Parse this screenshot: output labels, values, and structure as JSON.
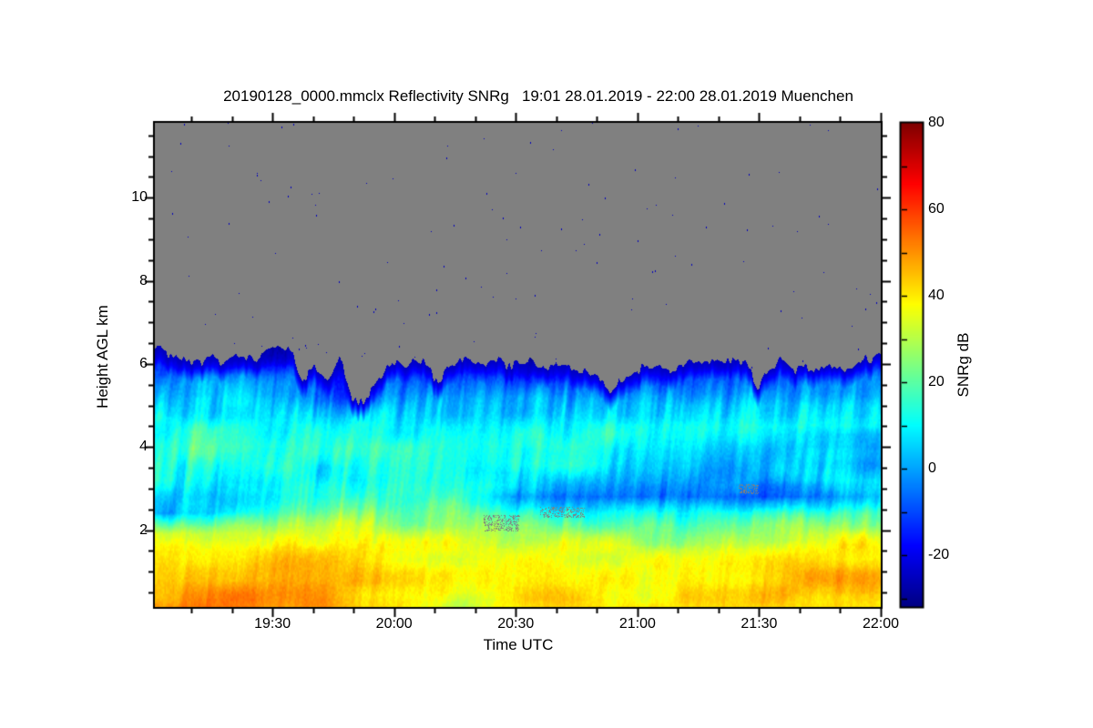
{
  "chart": {
    "title": "20190128_0000.mmclx Reflectivity SNRg   19:01 28.01.2019 - 22:00 28.01.2019 Muenchen",
    "xlabel": "Time UTC",
    "ylabel": "Height AGL km",
    "colorbar_label": "SNRg dB"
  },
  "chart_data": {
    "type": "heatmap",
    "title": "20190128_0000.mmclx Reflectivity SNRg   19:01 28.01.2019 - 22:00 28.01.2019 Muenchen",
    "xlabel": "Time UTC",
    "ylabel": "Height AGL km",
    "colorbar_label": "SNRg dB",
    "x_start": "19:01",
    "x_end": "22:00",
    "duration_min": 179,
    "x_tick_labels": [
      "19:30",
      "20:00",
      "20:30",
      "21:00",
      "21:30",
      "22:00"
    ],
    "x_tick_minutes": [
      29,
      59,
      89,
      119,
      149,
      179
    ],
    "x_minor_step_min": 10,
    "y_range_km": [
      0.15,
      11.8
    ],
    "y_ticks_km": [
      2,
      4,
      6,
      8,
      10
    ],
    "y_minor_step_km": 0.5,
    "value_range_db": [
      -32,
      80
    ],
    "colorbar_ticks_db": [
      80,
      60,
      40,
      20,
      0,
      -20
    ],
    "no_data_color": "#808080",
    "speckle_color": "#0000BE",
    "colormap": {
      "name": "jet",
      "stops": [
        [
          0.0,
          "#000083"
        ],
        [
          0.125,
          "#0000FF"
        ],
        [
          0.375,
          "#00FFFF"
        ],
        [
          0.625,
          "#FFFF00"
        ],
        [
          0.875,
          "#FF0000"
        ],
        [
          1.0,
          "#800000"
        ]
      ]
    },
    "profile_times_min": [
      0,
      15,
      30,
      45,
      60,
      75,
      90,
      105,
      120,
      135,
      150,
      165,
      179
    ],
    "profile_heights_km": [
      0.15,
      0.5,
      1.0,
      1.5,
      1.9,
      2.4,
      2.8,
      3.2,
      3.6,
      4.0,
      4.5,
      5.0,
      5.5,
      6.0,
      6.3
    ],
    "snr_profiles_db": [
      [
        48,
        47,
        44,
        39,
        30,
        -4,
        2,
        12,
        14,
        15,
        12,
        6,
        -2,
        -16,
        -24
      ],
      [
        50,
        48,
        45,
        40,
        32,
        8,
        6,
        10,
        14,
        16,
        13,
        7,
        0,
        -14,
        -22
      ],
      [
        51,
        50,
        47,
        41,
        34,
        20,
        12,
        10,
        13,
        15,
        12,
        6,
        -2,
        -15,
        -23
      ],
      [
        47,
        46,
        44,
        40,
        33,
        22,
        14,
        10,
        12,
        13,
        8,
        -2,
        -12,
        -20,
        -25
      ],
      [
        44,
        42,
        40,
        37,
        32,
        24,
        16,
        12,
        12,
        13,
        9,
        2,
        -8,
        -18,
        -24
      ],
      [
        28,
        36,
        39,
        36,
        31,
        24,
        17,
        13,
        13,
        14,
        10,
        4,
        -6,
        -16,
        -23
      ],
      [
        42,
        41,
        39,
        35,
        28,
        14,
        -2,
        6,
        14,
        17,
        12,
        4,
        -6,
        -17,
        -24
      ],
      [
        43,
        42,
        40,
        36,
        27,
        12,
        -4,
        2,
        12,
        16,
        11,
        3,
        -8,
        -18,
        -24
      ],
      [
        41,
        40,
        38,
        33,
        24,
        10,
        -7,
        0,
        4,
        8,
        9,
        2,
        -10,
        -19,
        -25
      ],
      [
        42,
        41,
        39,
        34,
        25,
        11,
        -6,
        -2,
        3,
        7,
        10,
        4,
        -8,
        -17,
        -24
      ],
      [
        43,
        44,
        42,
        36,
        26,
        14,
        -8,
        0,
        2,
        6,
        12,
        6,
        -4,
        -15,
        -23
      ],
      [
        42,
        46,
        45,
        39,
        32,
        18,
        0,
        8,
        4,
        2,
        14,
        10,
        -2,
        -13,
        -22
      ],
      [
        40,
        46,
        44,
        39,
        33,
        22,
        6,
        10,
        2,
        0,
        15,
        12,
        0,
        -12,
        -21
      ]
    ],
    "cloud_top_km": [
      6.35,
      6.3,
      6.22,
      6.12,
      6.08,
      6.06,
      6.1,
      6.18,
      6.24,
      6.3,
      6.3,
      6.22,
      5.5,
      6.0,
      5.55,
      6.1,
      5.15,
      5.1,
      5.5,
      5.95,
      6.02,
      6.05,
      5.98,
      5.45,
      5.9,
      6.05,
      6.08,
      6.07,
      6.05,
      6.04,
      6.02,
      5.98,
      5.96,
      5.93,
      5.91,
      5.86,
      5.8,
      5.4,
      5.6,
      5.85,
      5.89,
      5.92,
      5.95,
      5.97,
      6.0,
      6.05,
      6.16,
      6.1,
      5.95,
      5.5,
      5.9,
      6.14,
      5.9,
      5.85,
      5.92,
      5.97,
      5.85,
      5.9,
      6.1,
      6.25
    ],
    "no_data_pockets": [
      {
        "t_min": [
          81,
          90
        ],
        "h_km": [
          1.95,
          2.35
        ]
      },
      {
        "t_min": [
          95,
          106
        ],
        "h_km": [
          2.3,
          2.55
        ]
      },
      {
        "t_min": [
          144,
          149
        ],
        "h_km": [
          2.85,
          3.1
        ]
      }
    ],
    "speckle_density": 0.00055
  }
}
